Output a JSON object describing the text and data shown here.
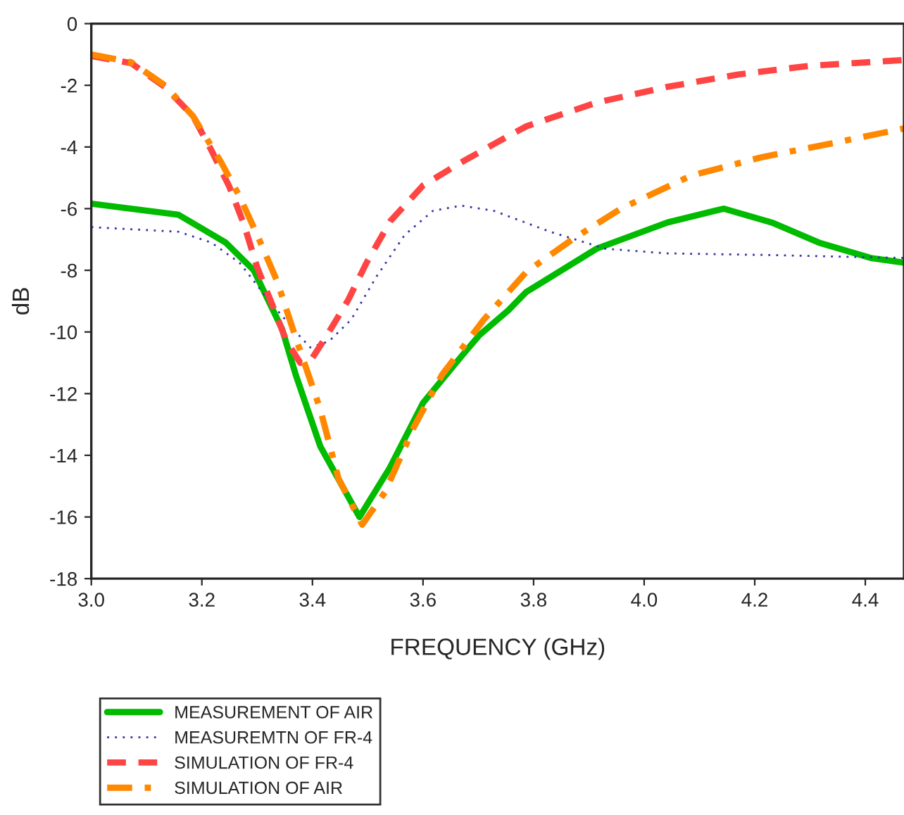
{
  "chart_data": {
    "type": "line",
    "xlabel": "FREQUENCY (GHz)",
    "ylabel": "dB",
    "xlim": [
      3.0,
      4.47
    ],
    "ylim": [
      -18,
      0
    ],
    "xticks": [
      {
        "value": 3.0,
        "label": "3.0"
      },
      {
        "value": 3.2,
        "label": "3.2"
      },
      {
        "value": 3.4,
        "label": "3.4"
      },
      {
        "value": 3.6,
        "label": "3.6"
      },
      {
        "value": 3.8,
        "label": "3.8"
      },
      {
        "value": 4.0,
        "label": "4.0"
      },
      {
        "value": 4.2,
        "label": "4.2"
      },
      {
        "value": 4.4,
        "label": "4.4"
      }
    ],
    "yticks": [
      0,
      -2,
      -4,
      -6,
      -8,
      -10,
      -12,
      -14,
      -16,
      -18
    ],
    "grid": false,
    "legend": "bottom left",
    "marker": "none",
    "series": [
      {
        "name": "MEASUREMENT OF AIR",
        "color": "#00bb00",
        "line_style": "solid",
        "x": [
          3.0,
          3.158,
          3.243,
          3.294,
          3.345,
          3.37,
          3.414,
          3.485,
          3.54,
          3.6,
          3.669,
          3.702,
          3.754,
          3.787,
          3.914,
          4.042,
          4.144,
          4.231,
          4.316,
          4.41,
          4.47
        ],
        "values": [
          -5.84,
          -6.2,
          -7.1,
          -8.0,
          -9.9,
          -11.4,
          -13.7,
          -16.0,
          -14.4,
          -12.3,
          -10.8,
          -10.1,
          -9.3,
          -8.7,
          -7.3,
          -6.45,
          -6.0,
          -6.45,
          -7.1,
          -7.6,
          -7.75
        ]
      },
      {
        "name": "MEASUREMTN OF FR-4",
        "color": "#3333aa",
        "line_style": "dotted",
        "x": [
          3.0,
          3.158,
          3.217,
          3.268,
          3.32,
          3.37,
          3.396,
          3.43,
          3.47,
          3.516,
          3.567,
          3.618,
          3.669,
          3.728,
          3.83,
          3.93,
          4.04,
          4.21,
          4.47
        ],
        "values": [
          -6.6,
          -6.75,
          -7.1,
          -7.75,
          -8.95,
          -10.0,
          -10.5,
          -10.3,
          -9.6,
          -8.2,
          -6.85,
          -6.07,
          -5.9,
          -6.07,
          -6.75,
          -7.3,
          -7.45,
          -7.5,
          -7.6
        ]
      },
      {
        "name": "SIMULATION OF FR-4",
        "color": "#ff4444",
        "line_style": "dashed",
        "x": [
          3.0,
          3.072,
          3.133,
          3.184,
          3.217,
          3.25,
          3.276,
          3.3,
          3.327,
          3.353,
          3.378,
          3.396,
          3.43,
          3.465,
          3.498,
          3.541,
          3.6,
          3.669,
          3.754,
          3.787,
          3.914,
          4.042,
          4.17,
          4.298,
          4.47
        ],
        "values": [
          -1.05,
          -1.28,
          -2.05,
          -3.0,
          -4.1,
          -5.3,
          -6.5,
          -7.9,
          -9.1,
          -10.3,
          -11.0,
          -10.95,
          -10.0,
          -8.95,
          -7.75,
          -6.4,
          -5.25,
          -4.5,
          -3.65,
          -3.33,
          -2.56,
          -2.05,
          -1.65,
          -1.37,
          -1.18
        ]
      },
      {
        "name": "SIMULATION OF AIR",
        "color": "#ff8800",
        "line_style": "dashdot",
        "x": [
          3.0,
          3.072,
          3.133,
          3.184,
          3.235,
          3.268,
          3.3,
          3.336,
          3.37,
          3.414,
          3.447,
          3.49,
          3.531,
          3.583,
          3.634,
          3.71,
          3.787,
          3.87,
          3.958,
          4.085,
          4.213,
          4.34,
          4.47
        ],
        "values": [
          -1.0,
          -1.25,
          -2.0,
          -3.0,
          -4.5,
          -5.6,
          -6.85,
          -8.35,
          -10.2,
          -12.5,
          -14.75,
          -16.25,
          -15.2,
          -13.1,
          -11.4,
          -9.6,
          -8.05,
          -7.0,
          -6.0,
          -4.93,
          -4.33,
          -3.88,
          -3.4
        ]
      }
    ]
  }
}
